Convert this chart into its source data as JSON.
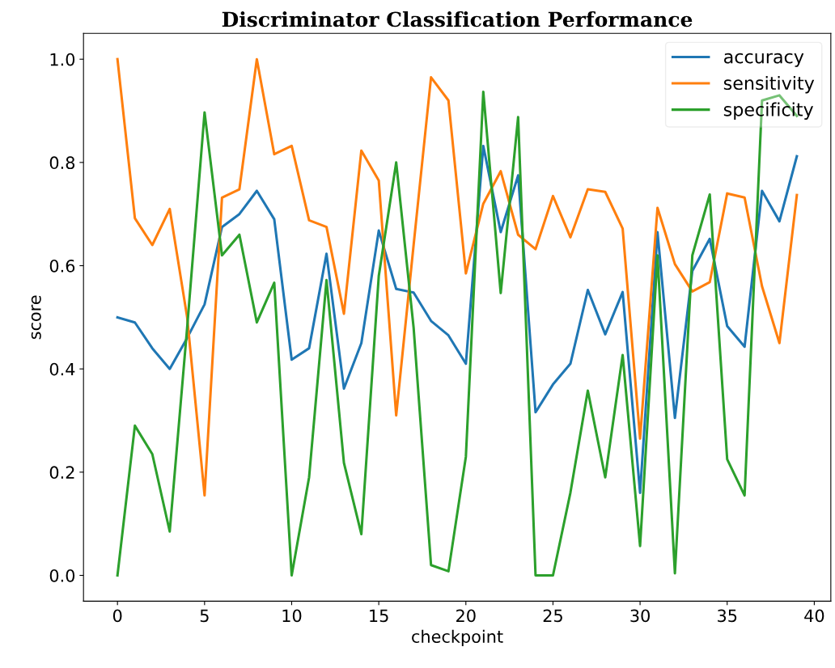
{
  "chart_data": {
    "type": "line",
    "title": "Discriminator Classification Performance",
    "xlabel": "checkpoint",
    "ylabel": "score",
    "x": [
      0,
      1,
      2,
      3,
      4,
      5,
      6,
      7,
      8,
      9,
      10,
      11,
      12,
      13,
      14,
      15,
      16,
      17,
      18,
      19,
      20,
      21,
      22,
      23,
      24,
      25,
      26,
      27,
      28,
      29,
      30,
      31,
      32,
      33,
      34,
      35,
      36,
      37,
      38,
      39
    ],
    "series": [
      {
        "name": "accuracy",
        "color": "#1f77b4",
        "values": [
          0.5,
          0.49,
          0.44,
          0.4,
          0.46,
          0.525,
          0.675,
          0.7,
          0.745,
          0.69,
          0.418,
          0.44,
          0.623,
          0.362,
          0.45,
          0.668,
          0.555,
          0.548,
          0.493,
          0.465,
          0.41,
          0.832,
          0.665,
          0.775,
          0.316,
          0.37,
          0.41,
          0.553,
          0.467,
          0.549,
          0.16,
          0.665,
          0.305,
          0.59,
          0.652,
          0.483,
          0.443,
          0.745,
          0.686,
          0.812
        ]
      },
      {
        "name": "sensitivity",
        "color": "#ff7f0e",
        "values": [
          1.0,
          0.692,
          0.64,
          0.71,
          0.5,
          0.155,
          0.732,
          0.748,
          1.0,
          0.816,
          0.832,
          0.688,
          0.675,
          0.507,
          0.823,
          0.765,
          0.31,
          0.64,
          0.965,
          0.92,
          0.585,
          0.72,
          0.783,
          0.66,
          0.632,
          0.735,
          0.655,
          0.748,
          0.743,
          0.672,
          0.265,
          0.712,
          0.603,
          0.55,
          0.568,
          0.74,
          0.732,
          0.56,
          0.45,
          0.737
        ]
      },
      {
        "name": "specificity",
        "color": "#2ca02c",
        "values": [
          0.0,
          0.29,
          0.235,
          0.085,
          0.48,
          0.897,
          0.62,
          0.66,
          0.49,
          0.567,
          0.0,
          0.19,
          0.572,
          0.218,
          0.08,
          0.58,
          0.8,
          0.48,
          0.02,
          0.008,
          0.23,
          0.937,
          0.547,
          0.888,
          0.0,
          0.0,
          0.16,
          0.358,
          0.19,
          0.427,
          0.057,
          0.62,
          0.004,
          0.62,
          0.738,
          0.225,
          0.155,
          0.92,
          0.93,
          0.89
        ]
      }
    ],
    "xlim": [
      -1.95,
      40.95
    ],
    "ylim": [
      -0.05,
      1.05
    ],
    "xticks": [
      0,
      5,
      10,
      15,
      20,
      25,
      30,
      35,
      40
    ],
    "yticks": [
      {
        "value": 0,
        "label": "0.0"
      },
      {
        "value": 0.2,
        "label": "0.2"
      },
      {
        "value": 0.4,
        "label": "0.4"
      },
      {
        "value": 0.6,
        "label": "0.6"
      },
      {
        "value": 0.8,
        "label": "0.8"
      },
      {
        "value": 1.0,
        "label": "1.0"
      }
    ],
    "grid": false,
    "legend": "top right",
    "marker": "none",
    "line_style": "solid"
  }
}
